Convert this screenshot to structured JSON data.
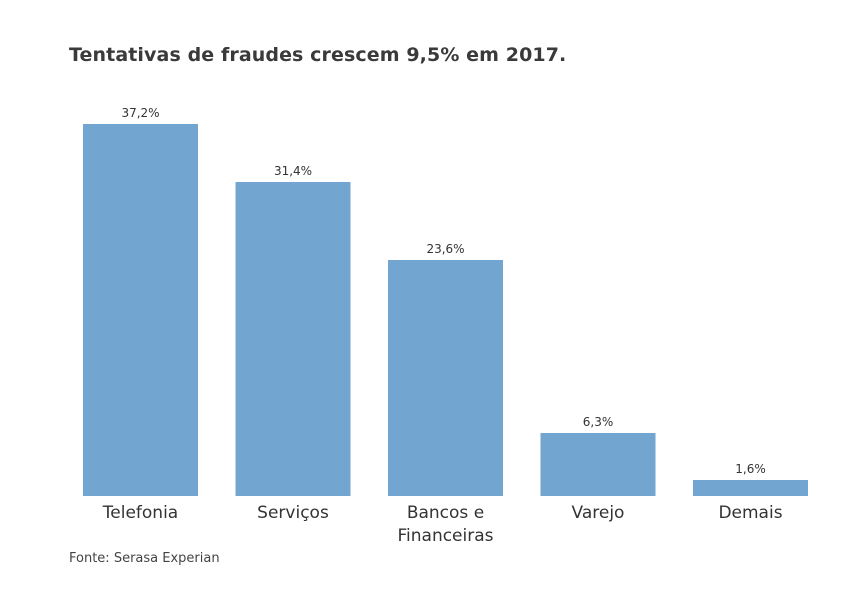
{
  "chart_data": {
    "type": "bar",
    "title": "Tentativas de fraudes crescem 9,5% em 2017.",
    "categories": [
      [
        "Telefonia"
      ],
      [
        "Serviços"
      ],
      [
        "Bancos e",
        "Financeiras"
      ],
      [
        "Varejo"
      ],
      [
        "Demais"
      ]
    ],
    "values": [
      37.2,
      31.4,
      23.6,
      6.3,
      1.6
    ],
    "value_labels": [
      "37,2%",
      "31,4%",
      "23,6%",
      "6,3%",
      "1,6%"
    ],
    "ylim": [
      0,
      40
    ],
    "grid": false,
    "bar_color": "#72a6d0",
    "xlabel": "",
    "ylabel": ""
  },
  "source": "Fonte: Serasa Experian"
}
